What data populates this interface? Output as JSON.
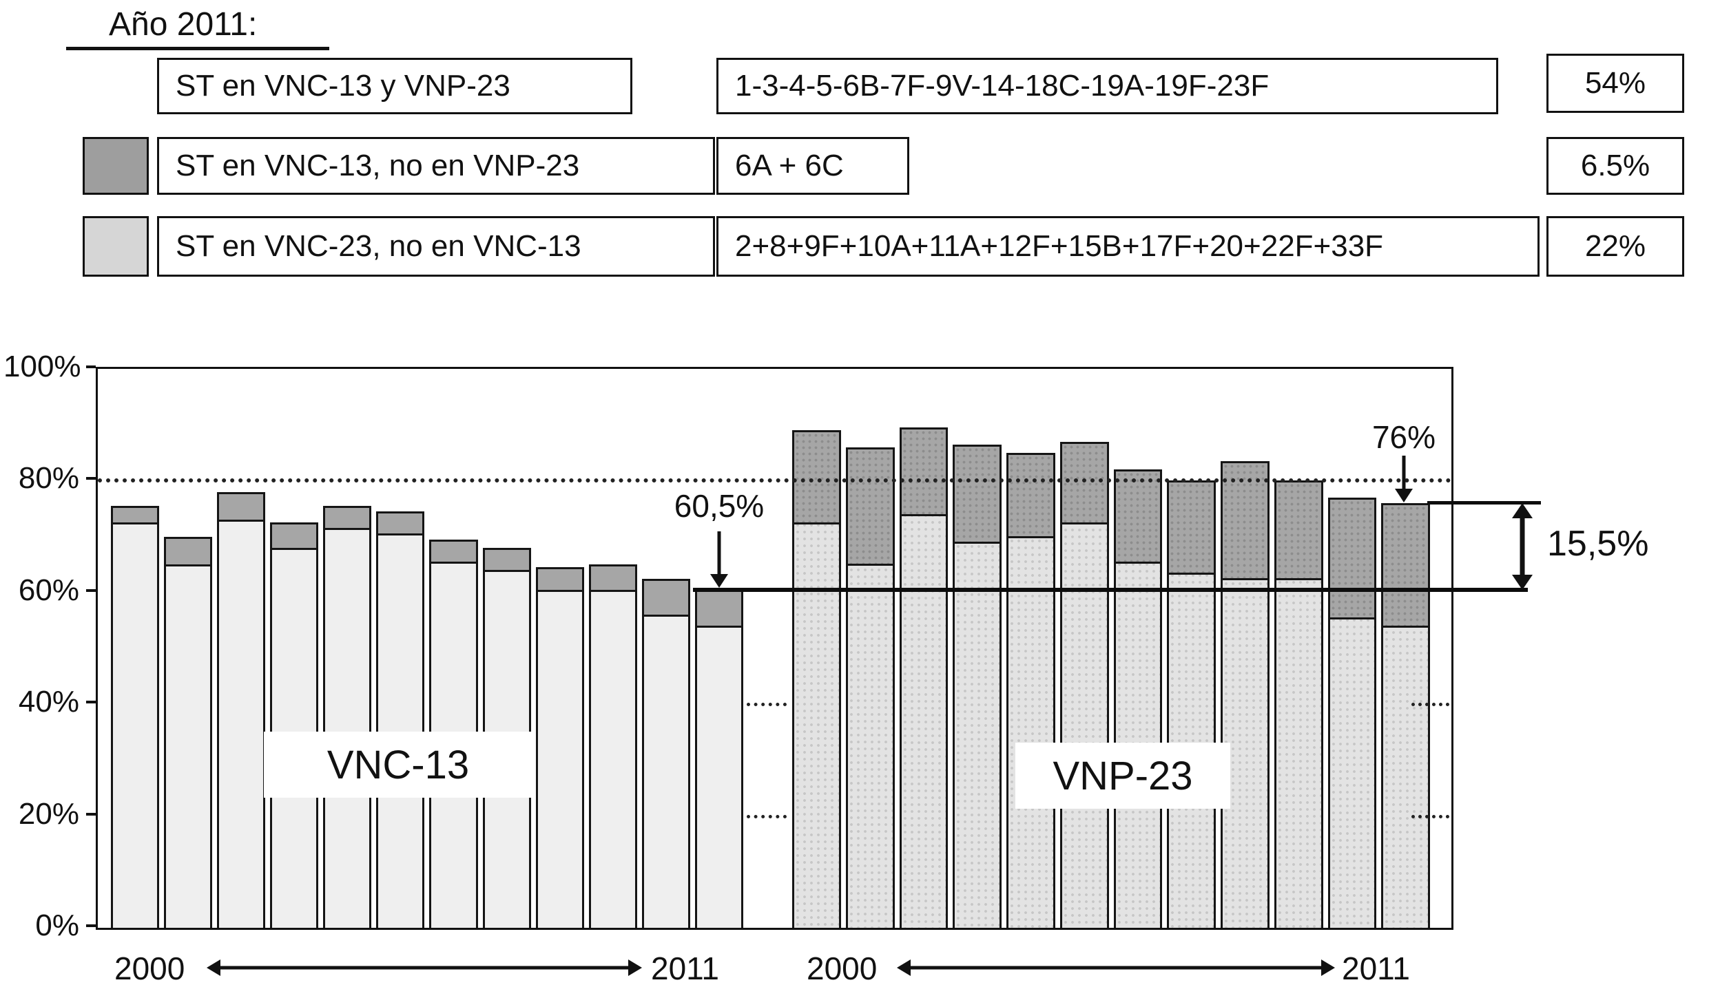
{
  "title": "Año 2011:",
  "legend": {
    "rows": [
      {
        "swatch": null,
        "label": "ST en VNC-13 y VNP-23",
        "serotypes": "1-3-4-5-6B-7F-9V-14-18C-19A-19F-23F",
        "percent": "54%"
      },
      {
        "swatch": "dark_gray",
        "label": "ST en VNC-13, no en VNP-23",
        "serotypes": "6A + 6C",
        "percent": "6.5%"
      },
      {
        "swatch": "light_gray",
        "label": "ST en VNC-23, no en VNC-13",
        "serotypes": "2+8+9F+10A+11A+12F+15B+17F+20+22F+33F",
        "percent": "22%"
      }
    ]
  },
  "chart_data": {
    "type": "bar",
    "stacked": true,
    "unit": "%",
    "ylim": [
      0,
      100
    ],
    "y_tick_labels": [
      "100%",
      "80%",
      "60%",
      "40%",
      "20%",
      "0%"
    ],
    "x_start_label": "2000",
    "x_end_label": "2011",
    "groups": [
      {
        "label": "VNC-13",
        "bars": [
          {
            "shared": 72.5,
            "total": 75.5
          },
          {
            "shared": 65,
            "total": 70
          },
          {
            "shared": 73,
            "total": 78
          },
          {
            "shared": 68,
            "total": 72.5
          },
          {
            "shared": 71.5,
            "total": 75.5
          },
          {
            "shared": 70.5,
            "total": 74.5
          },
          {
            "shared": 65.5,
            "total": 69.5
          },
          {
            "shared": 64,
            "total": 68
          },
          {
            "shared": 60.5,
            "total": 64.5
          },
          {
            "shared": 60.5,
            "total": 65
          },
          {
            "shared": 56,
            "total": 62.5
          },
          {
            "shared": 54,
            "total": 60.5
          }
        ]
      },
      {
        "label": "VNP-23",
        "bars": [
          {
            "shared": 72.5,
            "total": 89
          },
          {
            "shared": 65,
            "total": 86
          },
          {
            "shared": 74,
            "total": 89.5
          },
          {
            "shared": 69,
            "total": 86.5
          },
          {
            "shared": 70,
            "total": 85
          },
          {
            "shared": 72.5,
            "total": 87
          },
          {
            "shared": 65.5,
            "total": 82
          },
          {
            "shared": 63.5,
            "total": 80
          },
          {
            "shared": 62.5,
            "total": 83.5
          },
          {
            "shared": 62.5,
            "total": 80
          },
          {
            "shared": 55.5,
            "total": 77
          },
          {
            "shared": 54,
            "total": 76
          }
        ]
      }
    ],
    "annotations": {
      "vnc13_2011_label": "60,5%",
      "vnc13_2011_value": 60.5,
      "vnp23_2011_label": "76%",
      "vnp23_2011_value": 76,
      "difference_label": "15,5%",
      "difference_value": 15.5,
      "dotted_reference_value": 80
    }
  },
  "colors": {
    "vnc_base": "#efefef",
    "vnc_cap": "#a6a6a6",
    "vnp_base": "#e3e3e3",
    "vnp_cap": "#a6a6a6",
    "dark_gray": "#9e9e9e",
    "light_gray": "#d6d6d6"
  }
}
